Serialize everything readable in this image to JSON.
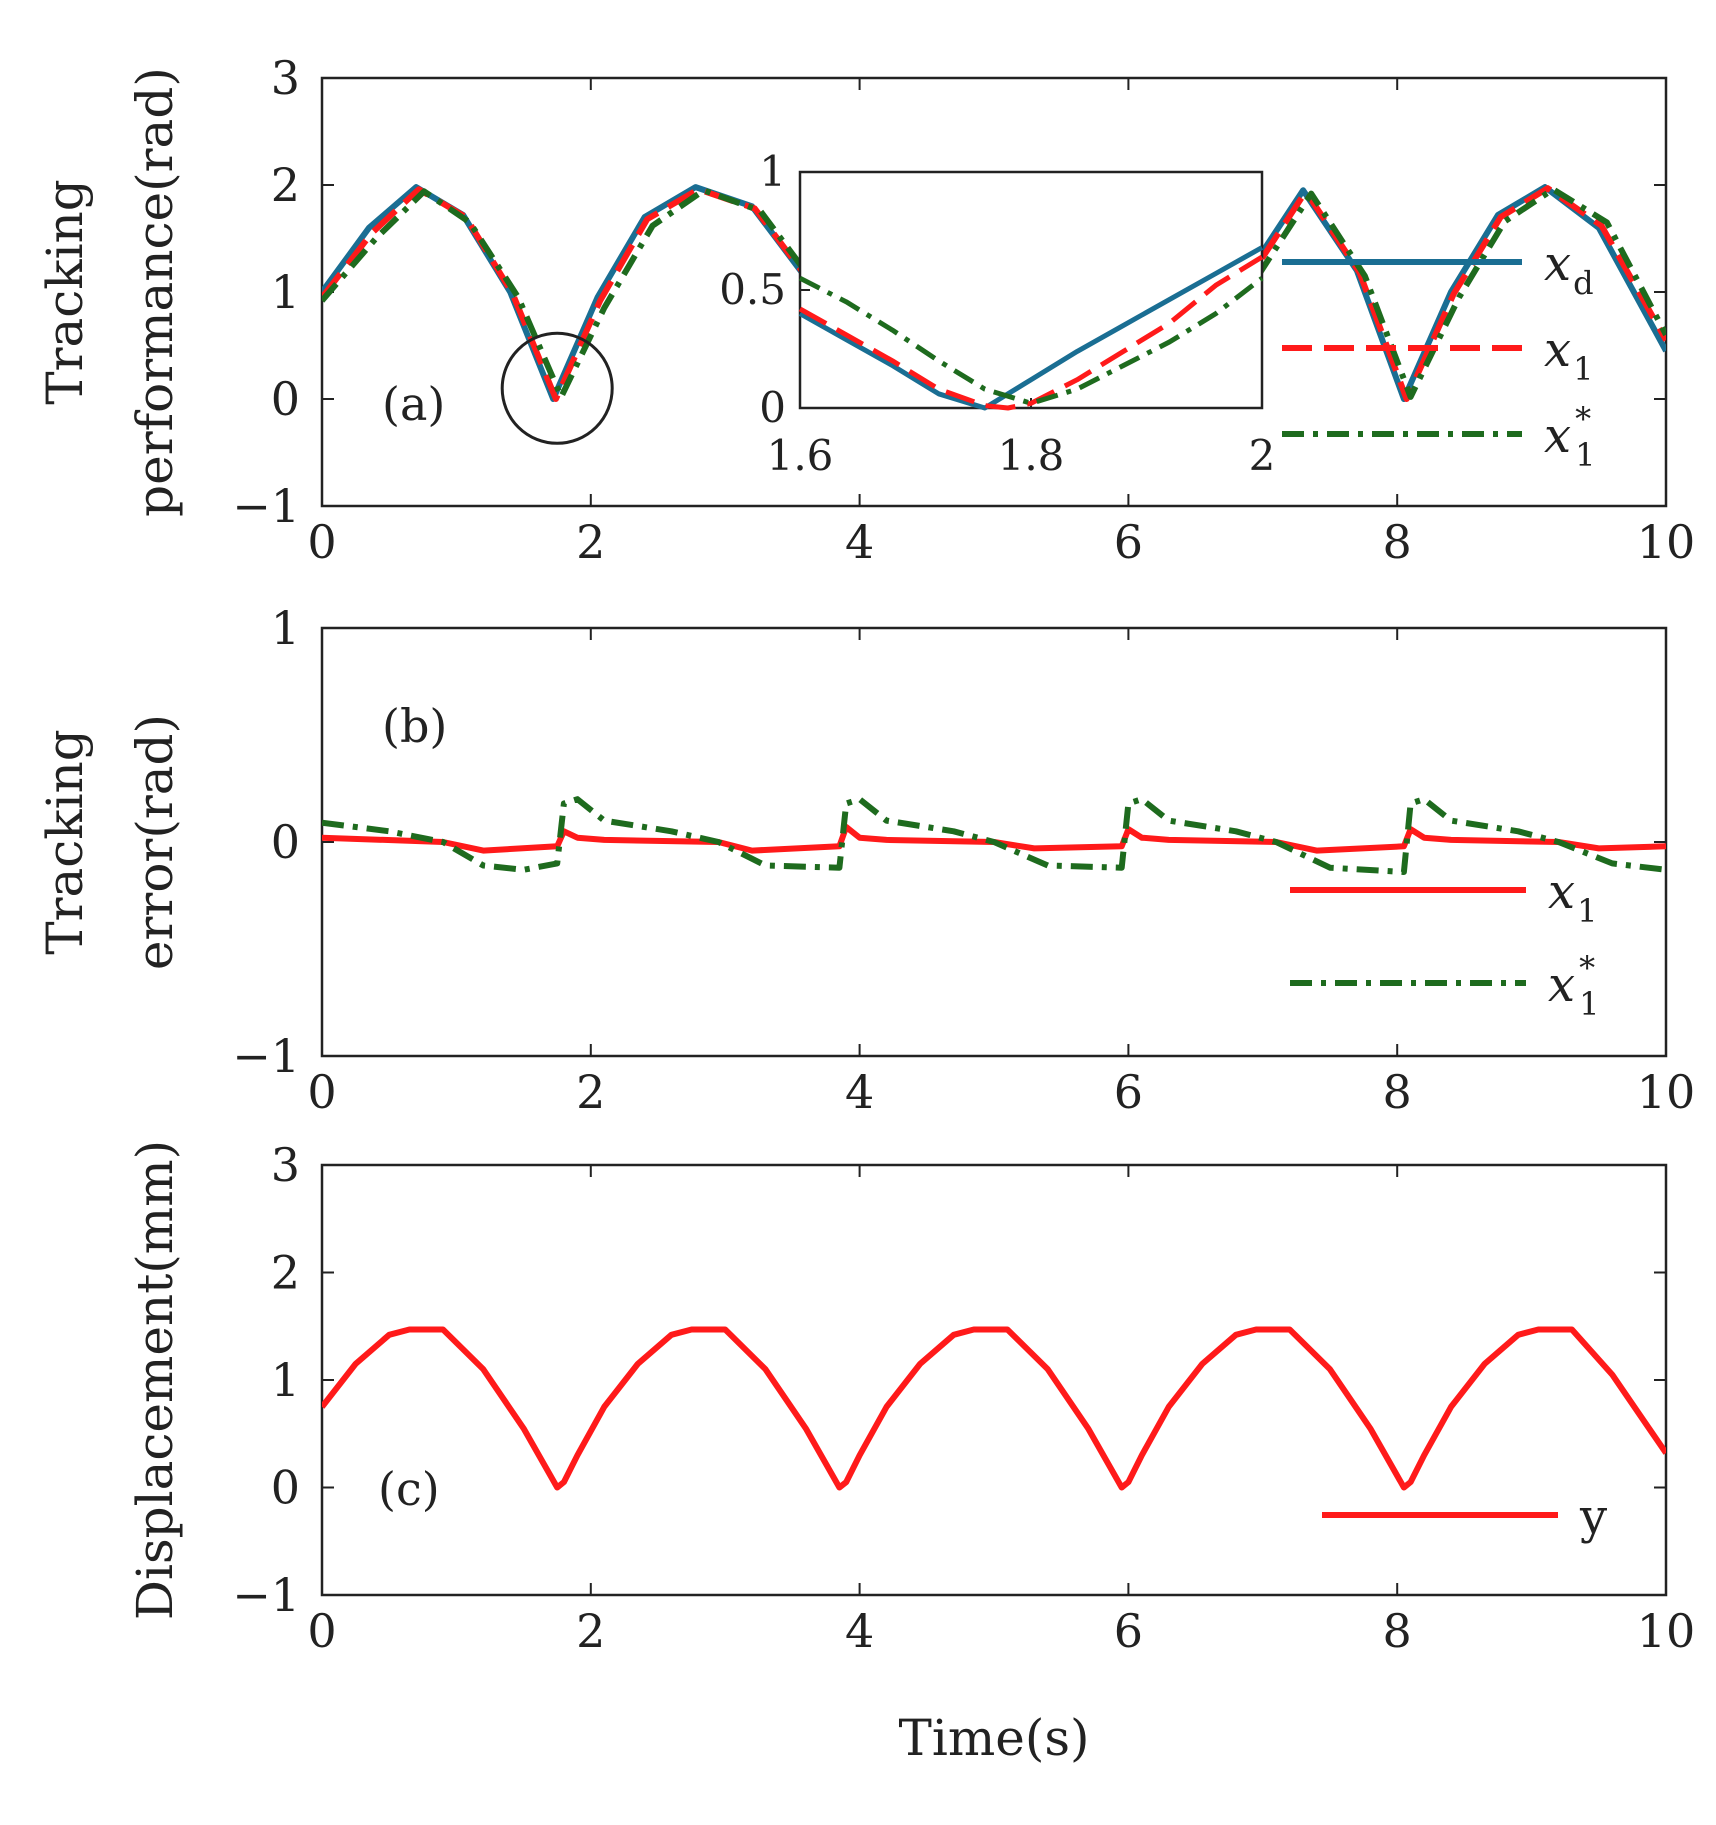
{
  "chart_data": [
    {
      "panel": "(a)",
      "type": "line",
      "ylabel": [
        "Tracking",
        "performance(rad)"
      ],
      "xlim": [
        0,
        10
      ],
      "ylim": [
        -1,
        3
      ],
      "xticks": [
        "0",
        "2",
        "4",
        "6",
        "8",
        "10"
      ],
      "yticks": [
        "−1",
        "0",
        "1",
        "2",
        "3"
      ],
      "series": [
        {
          "name": "x_d",
          "label": "x",
          "sub": "d",
          "sup": "",
          "color": "#1a6e93",
          "dash": "solid",
          "x": [
            0,
            0.35,
            0.7,
            1.05,
            1.4,
            1.72,
            2.05,
            2.4,
            2.78,
            3.2,
            3.8,
            4.4,
            5.0,
            5.6,
            6.2,
            6.8,
            7.3,
            7.7,
            8.05,
            8.4,
            8.75,
            9.1,
            9.5,
            10.0
          ],
          "y": [
            1.0,
            1.6,
            1.98,
            1.72,
            1.0,
            0.0,
            0.95,
            1.7,
            1.98,
            1.8,
            0.8,
            0.05,
            0.85,
            1.85,
            1.9,
            1.0,
            1.95,
            1.2,
            0.0,
            1.0,
            1.72,
            1.98,
            1.6,
            0.45
          ]
        },
        {
          "name": "x_1",
          "label": "x",
          "sub": "1",
          "sup": "",
          "color": "#ff1a1a",
          "dash": "long-dash",
          "x": [
            0,
            0.37,
            0.72,
            1.07,
            1.42,
            1.74,
            2.07,
            2.42,
            2.8,
            3.22,
            3.82,
            4.42,
            5.02,
            5.62,
            6.22,
            6.82,
            7.32,
            7.72,
            8.07,
            8.42,
            8.77,
            9.12,
            9.52,
            10.0
          ],
          "y": [
            0.95,
            1.55,
            1.96,
            1.7,
            0.98,
            0.0,
            0.92,
            1.68,
            1.96,
            1.78,
            0.78,
            0.05,
            0.83,
            1.83,
            1.88,
            0.98,
            1.94,
            1.18,
            0.0,
            0.98,
            1.7,
            1.97,
            1.62,
            0.55
          ]
        },
        {
          "name": "x_1^*",
          "label": "x",
          "sub": "1",
          "sup": "*",
          "color": "#1e6b1e",
          "dash": "dash-dot",
          "x": [
            0,
            0.4,
            0.76,
            1.1,
            1.46,
            1.78,
            2.1,
            2.46,
            2.84,
            3.26,
            3.86,
            4.46,
            5.06,
            5.66,
            6.26,
            6.86,
            7.36,
            7.76,
            8.1,
            8.46,
            8.8,
            9.16,
            9.56,
            10.0
          ],
          "y": [
            0.92,
            1.5,
            1.94,
            1.65,
            0.95,
            0.02,
            0.85,
            1.62,
            1.95,
            1.76,
            0.75,
            0.08,
            0.8,
            1.8,
            1.86,
            0.95,
            1.92,
            1.15,
            0.02,
            0.95,
            1.66,
            1.96,
            1.65,
            0.6
          ]
        }
      ],
      "inset": {
        "xlim": [
          1.6,
          2.0
        ],
        "ylim": [
          0,
          1
        ],
        "xticks": [
          "1.6",
          "1.8",
          "2"
        ],
        "yticks": [
          "0",
          "0.5",
          "1"
        ],
        "series": [
          {
            "name": "x_d",
            "x": [
              1.6,
              1.64,
              1.68,
              1.72,
              1.76,
              1.8,
              1.84,
              1.88,
              1.92,
              1.96,
              2.0
            ],
            "y": [
              0.4,
              0.29,
              0.18,
              0.06,
              0.0,
              0.12,
              0.24,
              0.35,
              0.46,
              0.57,
              0.68
            ]
          },
          {
            "name": "x_1",
            "x": [
              1.6,
              1.64,
              1.68,
              1.72,
              1.76,
              1.78,
              1.8,
              1.84,
              1.88,
              1.92,
              1.96,
              2.0
            ],
            "y": [
              0.42,
              0.31,
              0.2,
              0.08,
              0.01,
              0.0,
              0.02,
              0.12,
              0.24,
              0.36,
              0.52,
              0.64
            ]
          },
          {
            "name": "x_1^*",
            "x": [
              1.6,
              1.64,
              1.68,
              1.72,
              1.76,
              1.8,
              1.84,
              1.88,
              1.92,
              1.96,
              2.0
            ],
            "y": [
              0.55,
              0.45,
              0.33,
              0.2,
              0.08,
              0.02,
              0.08,
              0.18,
              0.28,
              0.4,
              0.55
            ]
          }
        ]
      }
    },
    {
      "panel": "(b)",
      "type": "line",
      "ylabel": [
        "Tracking",
        "error(rad)"
      ],
      "xlim": [
        0,
        10
      ],
      "ylim": [
        -1,
        1
      ],
      "xticks": [
        "0",
        "2",
        "4",
        "6",
        "8",
        "10"
      ],
      "yticks": [
        "−1",
        "0",
        "1"
      ],
      "series": [
        {
          "name": "x_1",
          "label": "x",
          "sub": "1",
          "sup": "",
          "color": "#ff1a1a",
          "dash": "solid",
          "x": [
            0,
            0.9,
            1.2,
            1.75,
            1.8,
            1.9,
            2.1,
            2.95,
            3.2,
            3.85,
            3.9,
            4.0,
            4.2,
            5.0,
            5.3,
            5.95,
            6.0,
            6.1,
            6.3,
            7.1,
            7.4,
            8.05,
            8.1,
            8.2,
            8.4,
            9.2,
            9.5,
            10.0
          ],
          "y": [
            0.02,
            0.0,
            -0.04,
            -0.02,
            0.05,
            0.02,
            0.01,
            0.0,
            -0.04,
            -0.02,
            0.07,
            0.02,
            0.01,
            0.0,
            -0.03,
            -0.02,
            0.06,
            0.02,
            0.01,
            0.0,
            -0.04,
            -0.02,
            0.06,
            0.02,
            0.01,
            0.0,
            -0.03,
            -0.02
          ]
        },
        {
          "name": "x_1^*",
          "label": "x",
          "sub": "1",
          "sup": "*",
          "color": "#1e6b1e",
          "dash": "dash-dot",
          "x": [
            0,
            0.5,
            0.9,
            1.2,
            1.5,
            1.75,
            1.8,
            1.9,
            2.1,
            2.6,
            2.95,
            3.3,
            3.85,
            3.9,
            4.0,
            4.2,
            4.7,
            5.0,
            5.4,
            5.95,
            6.0,
            6.1,
            6.3,
            6.8,
            7.1,
            7.5,
            8.05,
            8.1,
            8.2,
            8.4,
            8.9,
            9.2,
            9.6,
            10.0
          ],
          "y": [
            0.09,
            0.05,
            0.0,
            -0.11,
            -0.13,
            -0.1,
            0.18,
            0.2,
            0.1,
            0.05,
            0.0,
            -0.11,
            -0.12,
            0.18,
            0.2,
            0.1,
            0.05,
            0.0,
            -0.11,
            -0.12,
            0.18,
            0.2,
            0.1,
            0.05,
            0.0,
            -0.12,
            -0.14,
            0.18,
            0.2,
            0.1,
            0.05,
            0.0,
            -0.1,
            -0.13
          ]
        }
      ]
    },
    {
      "panel": "(c)",
      "type": "line",
      "ylabel": [
        "Displacement(mm)"
      ],
      "xlabel": "Time(s)",
      "xlim": [
        0,
        10
      ],
      "ylim": [
        -1,
        3
      ],
      "xticks": [
        "0",
        "2",
        "4",
        "6",
        "8",
        "10"
      ],
      "yticks": [
        "−1",
        "0",
        "1",
        "2",
        "3"
      ],
      "series": [
        {
          "name": "y",
          "label": "y",
          "sub": "",
          "sup": "",
          "color": "#ff1a1a",
          "dash": "solid",
          "x": [
            0,
            0.25,
            0.5,
            0.65,
            0.9,
            1.2,
            1.5,
            1.75,
            1.8,
            1.9,
            2.1,
            2.35,
            2.6,
            2.75,
            3.0,
            3.3,
            3.6,
            3.85,
            3.9,
            4.0,
            4.2,
            4.45,
            4.7,
            4.85,
            5.1,
            5.4,
            5.7,
            5.95,
            6.0,
            6.1,
            6.3,
            6.55,
            6.8,
            6.95,
            7.2,
            7.5,
            7.8,
            8.05,
            8.1,
            8.2,
            8.4,
            8.65,
            8.9,
            9.05,
            9.3,
            9.6,
            10.0
          ],
          "y": [
            0.75,
            1.15,
            1.42,
            1.47,
            1.47,
            1.1,
            0.55,
            0.0,
            0.05,
            0.3,
            0.75,
            1.15,
            1.42,
            1.47,
            1.47,
            1.1,
            0.55,
            0.0,
            0.05,
            0.3,
            0.75,
            1.15,
            1.42,
            1.47,
            1.47,
            1.1,
            0.55,
            0.0,
            0.05,
            0.3,
            0.75,
            1.15,
            1.42,
            1.47,
            1.47,
            1.1,
            0.55,
            0.0,
            0.05,
            0.3,
            0.75,
            1.15,
            1.42,
            1.47,
            1.47,
            1.05,
            0.32
          ]
        }
      ]
    }
  ]
}
